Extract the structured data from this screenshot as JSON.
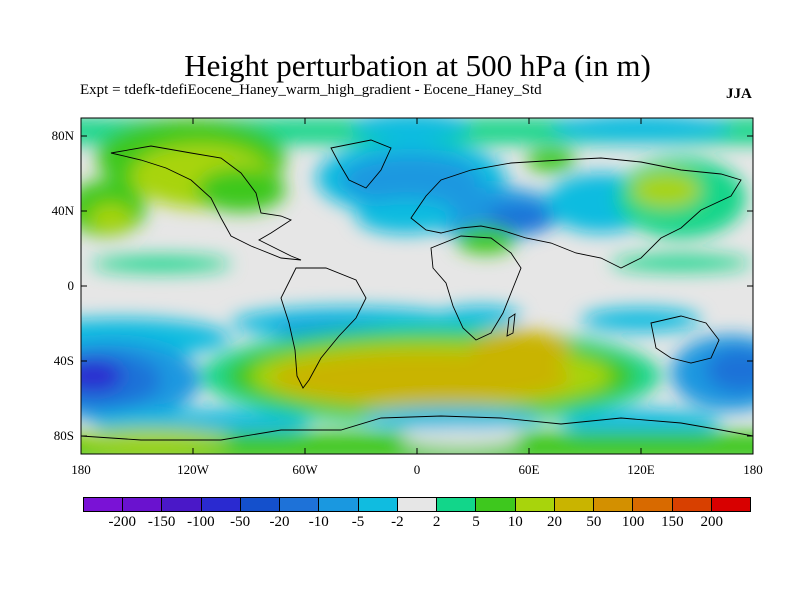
{
  "title": "Height perturbation at 500 hPa (in m)",
  "subtitle": "Expt = tdefk-tdefiEocene_Haney_warm_high_gradient - Eocene_Haney_Std",
  "season": "JJA",
  "lat_ticks": [
    "80N",
    "40N",
    "0",
    "40S",
    "80S"
  ],
  "lon_ticks": [
    "180",
    "120W",
    "60W",
    "0",
    "60E",
    "120E",
    "180"
  ],
  "colorbar": {
    "labels": [
      "-200",
      "-150",
      "-100",
      "-50",
      "-20",
      "-10",
      "-5",
      "-2",
      "2",
      "5",
      "10",
      "20",
      "50",
      "100",
      "150",
      "200"
    ],
    "colors": [
      "#7a12d6",
      "#6a12cf",
      "#4a18c8",
      "#2a2ad0",
      "#1450cc",
      "#1e72d8",
      "#1a98e0",
      "#10bce0",
      "#e6e6e6",
      "#12d68a",
      "#3ec81e",
      "#a8d40c",
      "#c9b400",
      "#d39000",
      "#d86a00",
      "#d84000",
      "#d80000"
    ]
  },
  "map": {
    "projection": "cylindrical-equidistant",
    "lon_range": [
      -180,
      180
    ],
    "lat_range": [
      -90,
      90
    ]
  }
}
